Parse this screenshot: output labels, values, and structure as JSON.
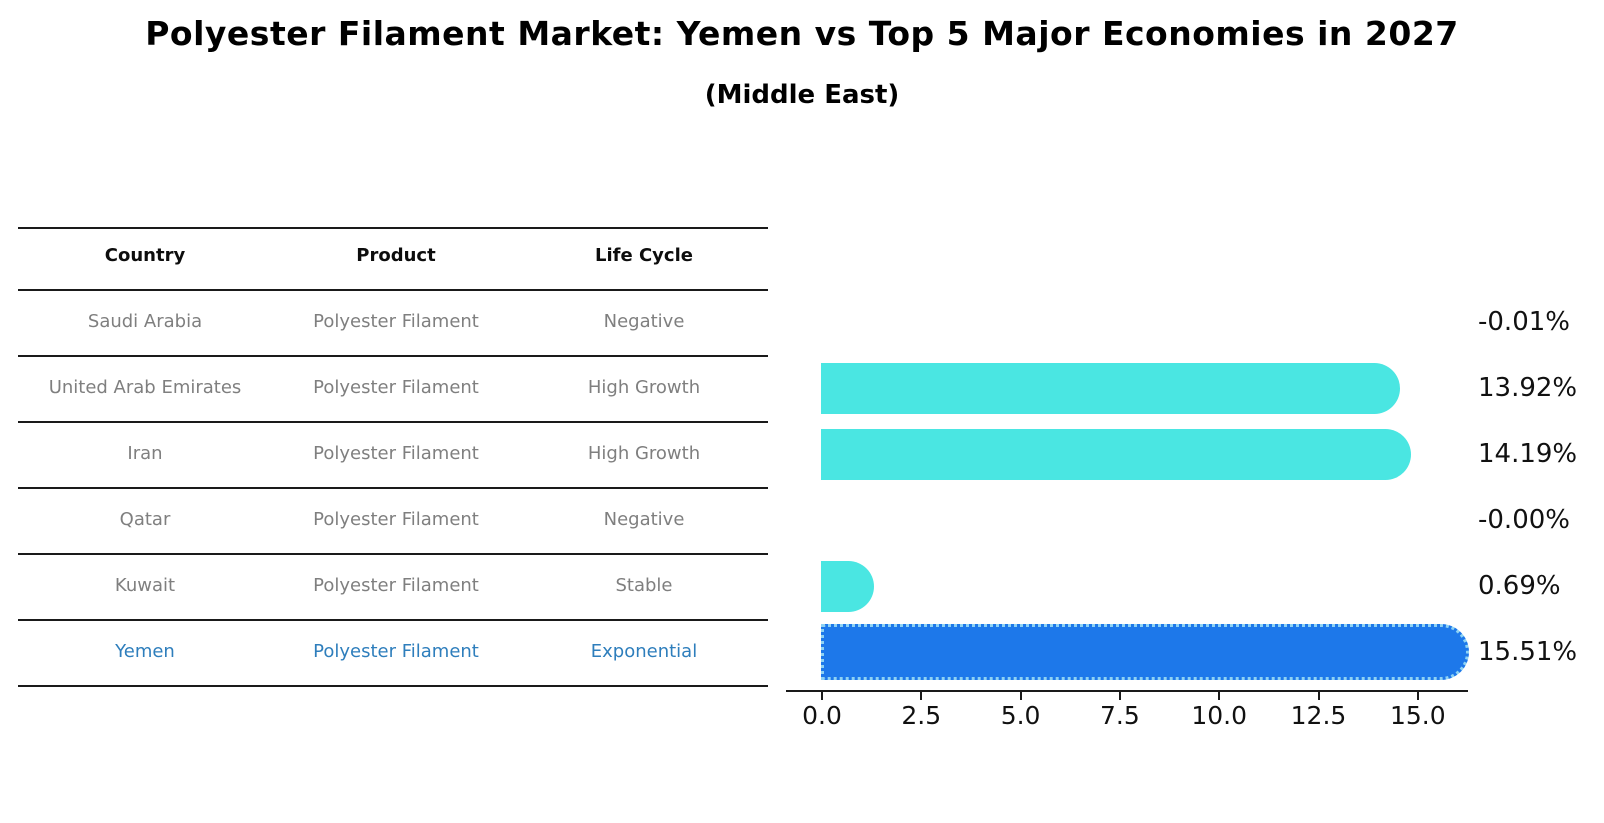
{
  "title": "Polyester Filament Market: Yemen vs Top 5 Major Economies in 2027",
  "subtitle": "(Middle East)",
  "table": {
    "headers": [
      "Country",
      "Product",
      "Life Cycle"
    ],
    "rows": [
      {
        "country": "Saudi Arabia",
        "product": "Polyester Filament",
        "life_cycle": "Negative"
      },
      {
        "country": "United Arab Emirates",
        "product": "Polyester Filament",
        "life_cycle": "High Growth"
      },
      {
        "country": "Iran",
        "product": "Polyester Filament",
        "life_cycle": "High Growth"
      },
      {
        "country": "Qatar",
        "product": "Polyester Filament",
        "life_cycle": "Negative"
      },
      {
        "country": "Kuwait",
        "product": "Polyester Filament",
        "life_cycle": "Stable"
      },
      {
        "country": "Yemen",
        "product": "Polyester Filament",
        "life_cycle": "Exponential"
      }
    ],
    "highlight_row_index": 5
  },
  "chart_data": {
    "type": "bar",
    "orientation": "horizontal",
    "categories": [
      "Saudi Arabia",
      "United Arab Emirates",
      "Iran",
      "Qatar",
      "Kuwait",
      "Yemen"
    ],
    "values": [
      -0.01,
      13.92,
      14.19,
      -0.0,
      0.69,
      15.51
    ],
    "value_labels": [
      "-0.01%",
      "13.92%",
      "14.19%",
      "-0.00%",
      "0.69%",
      "15.51%"
    ],
    "x_ticks": [
      "0.0",
      "2.5",
      "5.0",
      "7.5",
      "10.0",
      "12.5",
      "15.0"
    ],
    "x_tick_values": [
      0.0,
      2.5,
      5.0,
      7.5,
      10.0,
      12.5,
      15.0
    ],
    "xlim": [
      0,
      16.3
    ],
    "grid": "off",
    "legend": "none",
    "bar_color": "#4ae6e2",
    "highlight_bar_color": "#1d78ea",
    "highlight_border_color": "#8ed2f3",
    "highlight_index": 5,
    "highlight_text_color": "#2e7ebc"
  }
}
